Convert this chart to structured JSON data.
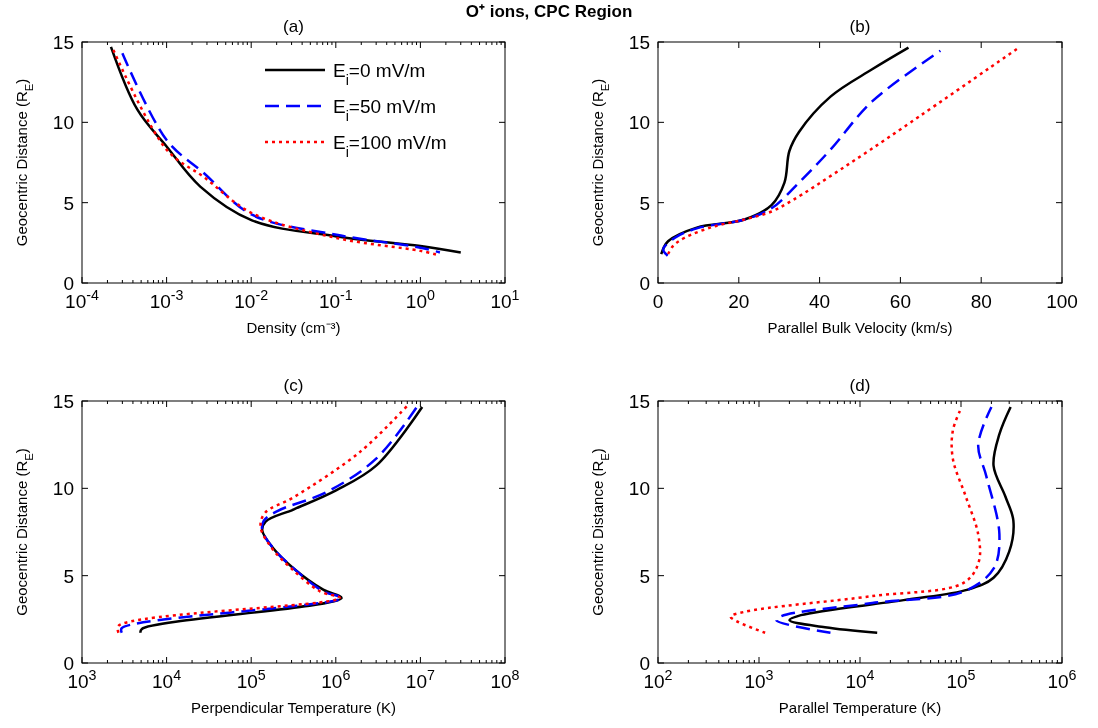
{
  "chart_data": [
    {
      "type": "line",
      "title": "(a)",
      "annotations": [
        "O⁺ ions, CPC Region"
      ],
      "xlabel": "Density (cm⁻³)",
      "ylabel": "Geocentric Distance (R$_{E}$)",
      "log": "x",
      "xlim": [
        0.0001,
        10
      ],
      "xticks": [
        {
          "value": 0.0001,
          "label": "10$^{-4}$"
        },
        {
          "value": 0.001,
          "label": "10$^{-3}$"
        },
        {
          "value": 0.01,
          "label": "10$^{-2}$"
        },
        {
          "value": 0.1,
          "label": "10$^{-1}$"
        },
        {
          "value": 1,
          "label": "10$^{0}$"
        },
        {
          "value": 10,
          "label": "10$^{1}$"
        }
      ],
      "ylim": [
        0,
        15
      ],
      "yticks": [
        0,
        5,
        10,
        15
      ],
      "legend": "top right",
      "series": [
        {
          "name": "E$_{i}$=0 mV/m",
          "color": "#000000",
          "line_style": "solid",
          "x": [
            0.00022,
            0.00045,
            0.001,
            0.0025,
            0.0102,
            0.102,
            1.0,
            3.0
          ],
          "values": [
            14.7,
            10.8,
            8.5,
            6.0,
            3.9,
            2.9,
            2.3,
            1.9
          ]
        },
        {
          "name": "E$_{i}$=50 mV/m",
          "color": "#0000ff",
          "line_style": "dashed",
          "x": [
            0.0003,
            0.001,
            0.00275,
            0.0102,
            0.102,
            1.0,
            1.7
          ],
          "values": [
            14.3,
            8.9,
            6.85,
            4.25,
            3.0,
            2.2,
            1.9
          ]
        },
        {
          "name": "E$_{i}$=100 mV/m",
          "color": "#ff0000",
          "line_style": "dotted",
          "x": [
            0.000235,
            0.001,
            0.00275,
            0.0102,
            0.102,
            1.0,
            1.6
          ],
          "values": [
            14.5,
            8.3,
            6.6,
            4.35,
            2.8,
            2.0,
            1.75
          ]
        }
      ]
    },
    {
      "type": "line",
      "title": "(b)",
      "xlabel": "Parallel Bulk Velocity (km/s)",
      "ylabel": "Geocentric Distance (R$_{E}$)",
      "xlim": [
        0,
        100
      ],
      "xticks": [
        0,
        20,
        40,
        60,
        80,
        100
      ],
      "ylim": [
        0,
        15
      ],
      "yticks": [
        0,
        5,
        10,
        15
      ],
      "series": [
        {
          "color": "#000000",
          "line_style": "solid",
          "x": [
            0.8,
            2.5,
            9.6,
            21.4,
            28.1,
            31.3,
            32.5,
            34.9,
            42.7,
            53,
            62
          ],
          "values": [
            1.8,
            2.6,
            3.45,
            3.95,
            4.85,
            6.25,
            8.2,
            9.4,
            11.6,
            13.3,
            14.65
          ]
        },
        {
          "color": "#0000ff",
          "line_style": "dashed",
          "x": [
            2.4,
            1.3,
            4.1,
            9.6,
            21.4,
            28.1,
            34.9,
            42.7,
            53,
            69.9
          ],
          "values": [
            1.7,
            2.1,
            2.8,
            3.4,
            3.95,
            4.65,
            6.25,
            8.3,
            11.3,
            14.45
          ]
        },
        {
          "color": "#ff0000",
          "line_style": "dotted",
          "x": [
            2.5,
            3.7,
            6.5,
            13.6,
            21.4,
            28.1,
            33.3,
            45.1,
            60.8,
            89.6
          ],
          "values": [
            1.8,
            2.3,
            2.8,
            3.5,
            3.95,
            4.45,
            5.15,
            7.05,
            9.7,
            14.7
          ]
        }
      ]
    },
    {
      "type": "line",
      "title": "(c)",
      "xlabel": "Perpendicular Temperature (K)",
      "ylabel": "Geocentric Distance (R$_{E}$)",
      "log": "x",
      "xlim": [
        1000,
        100000000
      ],
      "xticks": [
        {
          "value": 1000,
          "label": "10$^{3}$"
        },
        {
          "value": 10000,
          "label": "10$^{4}$"
        },
        {
          "value": 100000,
          "label": "10$^{5}$"
        },
        {
          "value": 1000000,
          "label": "10$^{6}$"
        },
        {
          "value": 10000000,
          "label": "10$^{7}$"
        },
        {
          "value": 100000000,
          "label": "10$^{8}$"
        }
      ],
      "ylim": [
        0,
        15
      ],
      "yticks": [
        0,
        5,
        10,
        15
      ],
      "series": [
        {
          "color": "#000000",
          "line_style": "solid",
          "x": [
            4900,
            5100,
            1170000,
            710000,
            320000,
            180000,
            135000,
            148000,
            320000,
            1020000,
            3000000,
            10500000
          ],
          "values": [
            1.73,
            1.95,
            3.72,
            4.2,
            5.4,
            6.6,
            7.6,
            8.1,
            8.8,
            9.9,
            11.3,
            14.66
          ]
        },
        {
          "color": "#0000ff",
          "line_style": "dashed",
          "x": [
            2950,
            2950,
            1170000,
            710000,
            320000,
            180000,
            135000,
            141000,
            204000,
            790000,
            3000000,
            9100000
          ],
          "values": [
            1.73,
            2.0,
            3.72,
            4.1,
            5.4,
            6.6,
            7.6,
            8.15,
            8.7,
            9.8,
            11.7,
            14.66
          ]
        },
        {
          "color": "#ff0000",
          "line_style": "dotted",
          "x": [
            2700,
            2700,
            1120000,
            650000,
            300000,
            174000,
            129000,
            146000,
            320000,
            1950000,
            6900000
          ],
          "values": [
            1.73,
            2.13,
            3.72,
            4.1,
            5.4,
            6.6,
            7.8,
            8.6,
            9.5,
            12.1,
            14.7
          ]
        }
      ]
    },
    {
      "type": "line",
      "title": "(d)",
      "xlabel": "Parallel Temperature (K)",
      "ylabel": "Geocentric Distance (R$_{E}$)",
      "log": "x",
      "xlim": [
        100,
        1000000
      ],
      "xticks": [
        {
          "value": 100,
          "label": "10$^{2}$"
        },
        {
          "value": 1000,
          "label": "10$^{3}$"
        },
        {
          "value": 10000,
          "label": "10$^{4}$"
        },
        {
          "value": 100000,
          "label": "10$^{5}$"
        },
        {
          "value": 1000000,
          "label": "10$^{6}$"
        }
      ],
      "ylim": [
        0,
        15
      ],
      "yticks": [
        0,
        5,
        10,
        15
      ],
      "series": [
        {
          "color": "#000000",
          "line_style": "solid",
          "x": [
            14800,
            4500,
            2000,
            2600,
            27000,
            117000,
            210000,
            300000,
            330000,
            275000,
            210000,
            240000,
            310000
          ],
          "values": [
            1.73,
            2.05,
            2.45,
            2.74,
            3.6,
            4.2,
            4.88,
            6.38,
            8.15,
            9.53,
            11.3,
            13.1,
            14.66
          ]
        },
        {
          "color": "#0000ff",
          "line_style": "dashed",
          "x": [
            5100,
            1480,
            1660,
            13200,
            107000,
            210000,
            240000,
            178000,
            148000,
            200000
          ],
          "values": [
            1.73,
            2.45,
            2.68,
            3.43,
            4.1,
            5.4,
            7.37,
            10.7,
            12.5,
            14.66
          ]
        },
        {
          "color": "#ff0000",
          "line_style": "dotted",
          "x": [
            1150,
            525,
            720,
            13200,
            107000,
            150000,
            148000,
            112000,
            83000,
            83000,
            100000
          ],
          "values": [
            1.73,
            2.64,
            2.93,
            3.83,
            4.6,
            5.8,
            7.37,
            9.5,
            11.7,
            13.3,
            14.57
          ]
        }
      ]
    }
  ]
}
